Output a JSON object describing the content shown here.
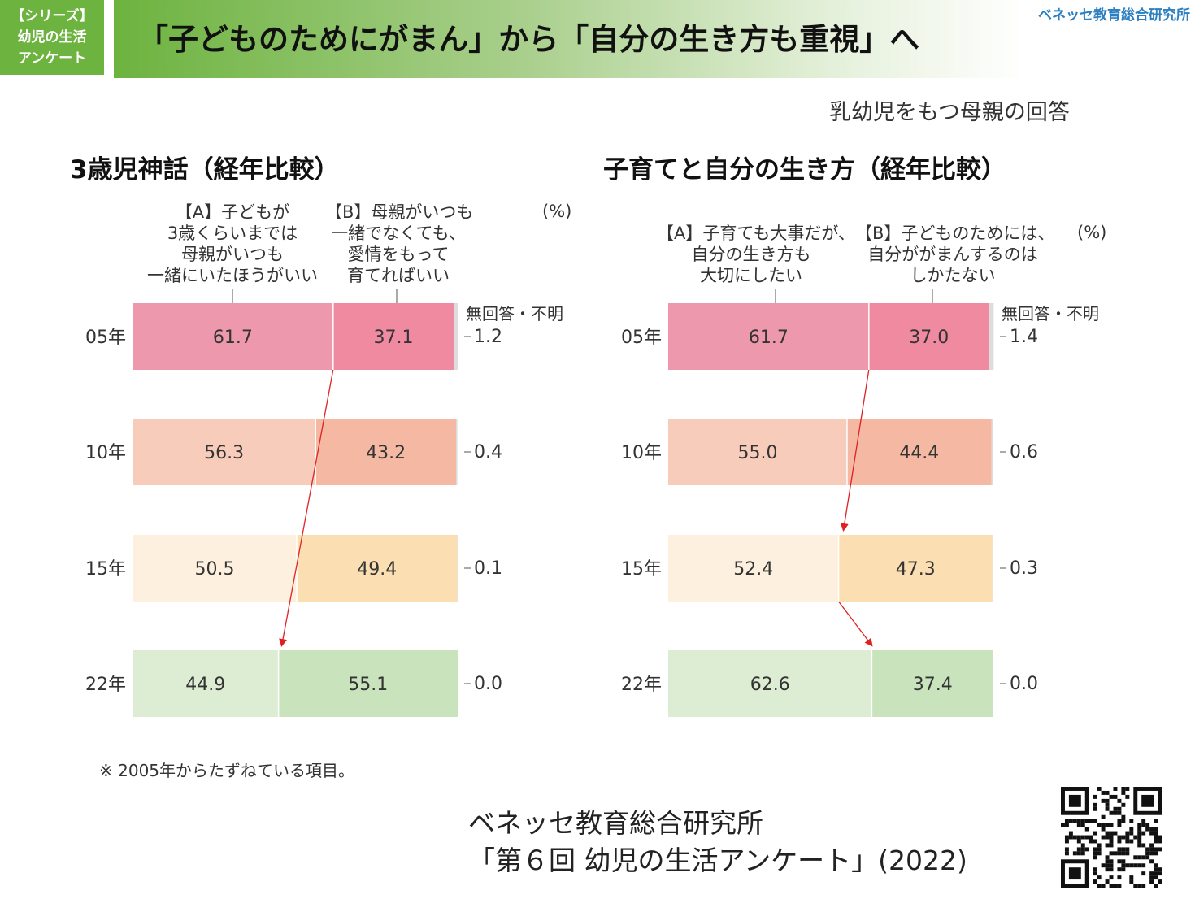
{
  "header": {
    "badge_lines": [
      "【シリーズ】",
      "幼児の生活",
      "アンケート"
    ],
    "title": "「子どものためにがまん」から「自分の生き方も重視」へ",
    "brand": "ベネッセ教育総合研究所"
  },
  "subtitle_note": "乳幼児をもつ母親の回答",
  "colors": {
    "a": [
      "#ee98ad",
      "#f8ccbb",
      "#fdf0de",
      "#dcedd3"
    ],
    "b": [
      "#ef8aa0",
      "#f5b8a3",
      "#fbdfb2",
      "#c9e4bd"
    ],
    "remainder": "#dddddd",
    "arrow": "#e02020"
  },
  "chart_data": [
    {
      "type": "bar",
      "orientation": "horizontal-stacked",
      "title": "3歳児神話（経年比較）",
      "unit": "(%)",
      "categories": [
        "05年",
        "10年",
        "15年",
        "22年"
      ],
      "series": [
        {
          "name": "【A】子どもが3歳くらいまでは母親がいつも一緒にいたほうがいい",
          "label_lines": [
            "【A】子どもが",
            "3歳くらいまでは",
            "母親がいつも",
            "一緒にいたほうがいい"
          ],
          "values": [
            61.7,
            56.3,
            50.5,
            44.9
          ]
        },
        {
          "name": "【B】母親がいつも一緒でなくても、愛情をもって育てればいい",
          "label_lines": [
            "【B】母親がいつも",
            "一緒でなくても、",
            "愛情をもって",
            "育てればいい"
          ],
          "values": [
            37.1,
            43.2,
            49.4,
            55.1
          ]
        },
        {
          "name": "無回答・不明",
          "values": [
            1.2,
            0.4,
            0.1,
            0.0
          ]
        }
      ],
      "remainder_labels": [
        "1.2",
        "0.4",
        "0.1",
        "0.0"
      ],
      "annotations": [
        "arrow from 05年 A/B boundary to 22年 A/B boundary"
      ]
    },
    {
      "type": "bar",
      "orientation": "horizontal-stacked",
      "title": "子育てと自分の生き方（経年比較）",
      "unit": "(%)",
      "categories": [
        "05年",
        "10年",
        "15年",
        "22年"
      ],
      "series": [
        {
          "name": "【A】子育ても大事だが、自分の生き方も大切にしたい",
          "label_lines": [
            "【A】子育ても大事だが、",
            "自分の生き方も",
            "大切にしたい"
          ],
          "values": [
            61.7,
            55.0,
            52.4,
            62.6
          ]
        },
        {
          "name": "【B】子どものためには、自分ががまんするのはしかたない",
          "label_lines": [
            "【B】子どものためには、",
            "自分ががまんするのは",
            "しかたない"
          ],
          "values": [
            37.0,
            44.4,
            47.3,
            37.4
          ]
        },
        {
          "name": "無回答・不明",
          "values": [
            1.4,
            0.6,
            0.3,
            0.0
          ]
        }
      ],
      "remainder_labels": [
        "1.4",
        "0.6",
        "0.3",
        "0.0"
      ],
      "annotations": [
        "arrow from 05年 A/B boundary to 15年 A/B boundary",
        "arrow from 15年 A/B boundary to 22年 A/B boundary"
      ]
    }
  ],
  "no_answer_label": "無回答・不明",
  "footnote": "※ 2005年からたずねている項目。",
  "source": {
    "line1": "ベネッセ教育総合研究所",
    "line2": "「第６回 幼児の生活アンケート」(2022)"
  }
}
